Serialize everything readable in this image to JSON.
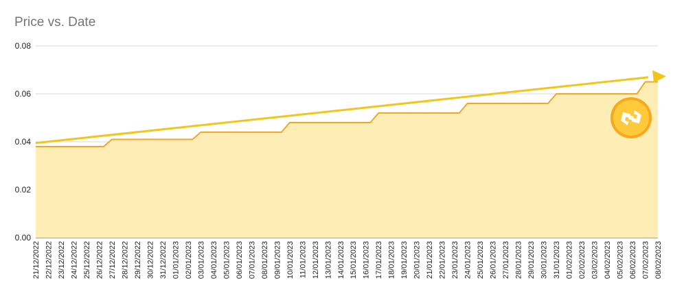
{
  "chart_data": {
    "type": "area",
    "title": "Price vs. Date",
    "xlabel": "",
    "ylabel": "",
    "ylim": [
      0,
      0.08
    ],
    "yticks": [
      "0.00",
      "0.02",
      "0.04",
      "0.06",
      "0.08"
    ],
    "grid": true,
    "legend": "none",
    "x": [
      "21/12/2022",
      "22/12/2022",
      "23/12/2022",
      "24/12/2022",
      "25/12/2022",
      "26/12/2022",
      "27/12/2022",
      "28/12/2022",
      "29/12/2022",
      "30/12/2022",
      "31/12/2022",
      "01/01/2023",
      "02/01/2023",
      "03/01/2023",
      "04/01/2023",
      "05/01/2023",
      "06/01/2023",
      "07/01/2023",
      "08/01/2023",
      "09/01/2023",
      "10/01/2023",
      "11/01/2023",
      "12/01/2023",
      "13/01/2023",
      "14/01/2023",
      "15/01/2023",
      "16/01/2023",
      "17/01/2023",
      "18/01/2023",
      "19/01/2023",
      "20/01/2023",
      "21/01/2023",
      "22/01/2023",
      "23/01/2023",
      "24/01/2023",
      "25/01/2023",
      "26/01/2023",
      "27/01/2023",
      "28/01/2023",
      "29/01/2023",
      "30/01/2023",
      "31/01/2023",
      "01/02/2023",
      "02/02/2023",
      "03/02/2023",
      "04/02/2023",
      "05/02/2023",
      "06/02/2023",
      "07/02/2023",
      "08/02/2023"
    ],
    "series": [
      {
        "values": [
          0.038,
          0.038,
          0.038,
          0.038,
          0.038,
          0.038,
          0.041,
          0.041,
          0.041,
          0.041,
          0.041,
          0.041,
          0.041,
          0.044,
          0.044,
          0.044,
          0.044,
          0.044,
          0.044,
          0.044,
          0.048,
          0.048,
          0.048,
          0.048,
          0.048,
          0.048,
          0.048,
          0.052,
          0.052,
          0.052,
          0.052,
          0.052,
          0.052,
          0.052,
          0.056,
          0.056,
          0.056,
          0.056,
          0.056,
          0.056,
          0.056,
          0.06,
          0.06,
          0.06,
          0.06,
          0.06,
          0.06,
          0.06,
          0.065,
          0.065
        ]
      }
    ],
    "trend_arrow": {
      "from": 0.0395,
      "to": 0.067
    },
    "colors": {
      "area_fill": "#feeeb6",
      "line": "#f2a527",
      "trend": "#f2c51b",
      "grid": "#d9d9d9",
      "logo_outer": "#f7a81b",
      "logo_inner": "#ffc93c"
    },
    "logo_icon": "coin-logo-icon"
  }
}
